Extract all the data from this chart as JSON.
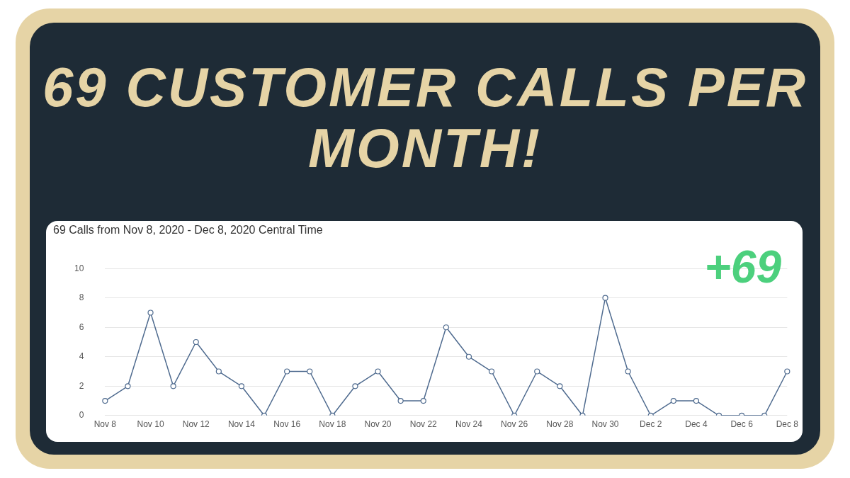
{
  "chart_data": {
    "type": "line",
    "title": "69 CUSTOMER CALLS PER MONTH!",
    "subtitle": "69 Calls from Nov 8, 2020 - Dec 8, 2020 Central Time",
    "annotations": [
      "+69"
    ],
    "categories": [
      "Nov 8",
      null,
      "Nov 10",
      null,
      "Nov 12",
      null,
      "Nov 14",
      null,
      "Nov 16",
      null,
      "Nov 18",
      null,
      "Nov 20",
      null,
      "Nov 22",
      null,
      "Nov 24",
      null,
      "Nov 26",
      null,
      "Nov 28",
      null,
      "Nov 30",
      null,
      "Dec 2",
      null,
      "Dec 4",
      null,
      "Dec 6",
      null,
      "Dec 8"
    ],
    "series": [
      {
        "color": "#4f6b8f",
        "values": [
          1,
          2,
          7,
          2,
          5,
          3,
          2,
          0,
          3,
          3,
          0,
          2,
          3,
          1,
          1,
          6,
          4,
          3,
          0,
          3,
          2,
          0,
          8,
          3,
          0,
          1,
          1,
          0,
          0,
          0,
          3
        ]
      }
    ],
    "ylim": [
      0,
      10
    ],
    "yticks": [
      0,
      2,
      4,
      6,
      8,
      10
    ],
    "grid": "y",
    "legend": false,
    "marker": "circle",
    "line_style": "solid"
  }
}
